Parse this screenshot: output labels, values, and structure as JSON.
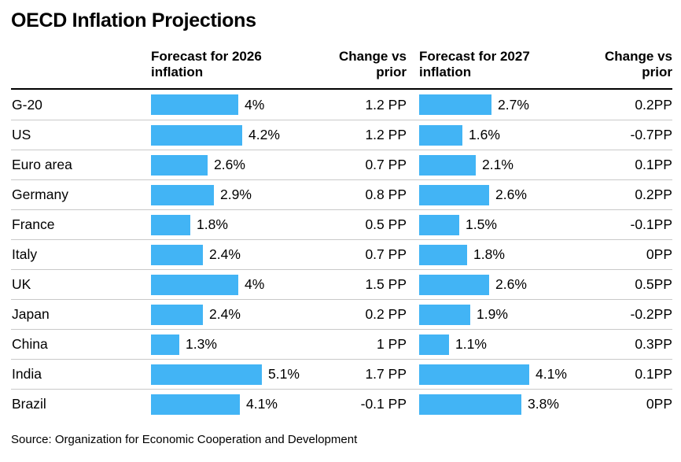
{
  "title": "OECD Inflation Projections",
  "source": "Source: Organization for Economic Cooperation and Development",
  "accent_color": "#42b4f5",
  "header": {
    "forecast_2026_line1": "Forecast for 2026",
    "forecast_2026_line2": "inflation",
    "change_2026_line1": "Change vs",
    "change_2026_line2": "prior",
    "forecast_2027_line1": "Forecast for 2027",
    "forecast_2027_line2": "inflation",
    "change_2027_line1": "Change vs",
    "change_2027_line2": "prior"
  },
  "chart_data": {
    "type": "bar",
    "title": "OECD Inflation Projections",
    "categories": [
      "G-20",
      "US",
      "Euro area",
      "Germany",
      "France",
      "Italy",
      "UK",
      "Japan",
      "China",
      "India",
      "Brazil"
    ],
    "series": [
      {
        "name": "Forecast for 2026 inflation",
        "unit": "%",
        "values": [
          4,
          4.2,
          2.6,
          2.9,
          1.8,
          2.4,
          4,
          2.4,
          1.3,
          5.1,
          4.1
        ],
        "labels": [
          "4%",
          "4.2%",
          "2.6%",
          "2.9%",
          "1.8%",
          "2.4%",
          "4%",
          "2.4%",
          "1.3%",
          "5.1%",
          "4.1%"
        ],
        "axis_range": [
          0,
          5.1
        ]
      },
      {
        "name": "Change vs prior (2026)",
        "unit": "PP",
        "values": [
          1.2,
          1.2,
          0.7,
          0.8,
          0.5,
          0.7,
          1.5,
          0.2,
          1,
          1.7,
          -0.1
        ],
        "labels": [
          "1.2 PP",
          "1.2 PP",
          "0.7 PP",
          "0.8 PP",
          "0.5 PP",
          "0.7 PP",
          "1.5 PP",
          "0.2 PP",
          "1 PP",
          "1.7 PP",
          "-0.1 PP"
        ]
      },
      {
        "name": "Forecast for 2027 inflation",
        "unit": "%",
        "values": [
          2.7,
          1.6,
          2.1,
          2.6,
          1.5,
          1.8,
          2.6,
          1.9,
          1.1,
          4.1,
          3.8
        ],
        "labels": [
          "2.7%",
          "1.6%",
          "2.1%",
          "2.6%",
          "1.5%",
          "1.8%",
          "2.6%",
          "1.9%",
          "1.1%",
          "4.1%",
          "3.8%"
        ],
        "axis_range": [
          0,
          4.1
        ]
      },
      {
        "name": "Change vs prior (2027)",
        "unit": "PP",
        "values": [
          0.2,
          -0.7,
          0.1,
          0.2,
          -0.1,
          0,
          0.5,
          -0.2,
          0.3,
          0.1,
          0
        ],
        "labels": [
          "0.2PP",
          "-0.7PP",
          "0.1PP",
          "0.2PP",
          "-0.1PP",
          "0PP",
          "0.5PP",
          "-0.2PP",
          "0.3PP",
          "0.1PP",
          "0PP"
        ]
      }
    ],
    "legend": false,
    "grid": false,
    "bar_color": "#42b4f5"
  },
  "rows": [
    {
      "country": "G-20",
      "v2026": 4,
      "label2026": "4%",
      "change2026": "1.2 PP",
      "v2027": 2.7,
      "label2027": "2.7%",
      "change2027": "0.2PP"
    },
    {
      "country": "US",
      "v2026": 4.2,
      "label2026": "4.2%",
      "change2026": "1.2 PP",
      "v2027": 1.6,
      "label2027": "1.6%",
      "change2027": "-0.7PP"
    },
    {
      "country": "Euro area",
      "v2026": 2.6,
      "label2026": "2.6%",
      "change2026": "0.7 PP",
      "v2027": 2.1,
      "label2027": "2.1%",
      "change2027": "0.1PP"
    },
    {
      "country": "Germany",
      "v2026": 2.9,
      "label2026": "2.9%",
      "change2026": "0.8 PP",
      "v2027": 2.6,
      "label2027": "2.6%",
      "change2027": "0.2PP"
    },
    {
      "country": "France",
      "v2026": 1.8,
      "label2026": "1.8%",
      "change2026": "0.5 PP",
      "v2027": 1.5,
      "label2027": "1.5%",
      "change2027": "-0.1PP"
    },
    {
      "country": "Italy",
      "v2026": 2.4,
      "label2026": "2.4%",
      "change2026": "0.7 PP",
      "v2027": 1.8,
      "label2027": "1.8%",
      "change2027": "0PP"
    },
    {
      "country": "UK",
      "v2026": 4,
      "label2026": "4%",
      "change2026": "1.5 PP",
      "v2027": 2.6,
      "label2027": "2.6%",
      "change2027": "0.5PP"
    },
    {
      "country": "Japan",
      "v2026": 2.4,
      "label2026": "2.4%",
      "change2026": "0.2 PP",
      "v2027": 1.9,
      "label2027": "1.9%",
      "change2027": "-0.2PP"
    },
    {
      "country": "China",
      "v2026": 1.3,
      "label2026": "1.3%",
      "change2026": "1 PP",
      "v2027": 1.1,
      "label2027": "1.1%",
      "change2027": "0.3PP"
    },
    {
      "country": "India",
      "v2026": 5.1,
      "label2026": "5.1%",
      "change2026": "1.7 PP",
      "v2027": 4.1,
      "label2027": "4.1%",
      "change2027": "0.1PP"
    },
    {
      "country": "Brazil",
      "v2026": 4.1,
      "label2026": "4.1%",
      "change2026": "-0.1 PP",
      "v2027": 3.8,
      "label2027": "3.8%",
      "change2027": "0PP"
    }
  ]
}
